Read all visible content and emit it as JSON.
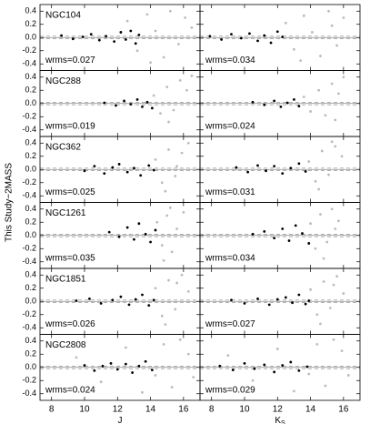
{
  "chart_data": [
    {
      "type": "scatter",
      "title": "NGC104",
      "annotation": "wrms=0.027",
      "ylabel": "This Study−2MASS",
      "xlim": [
        7.3,
        17
      ],
      "ylim": [
        -0.5,
        0.5
      ],
      "xticks": [
        8,
        10,
        12,
        14,
        16
      ],
      "yticks": [
        -0.4,
        -0.2,
        {
          "value": 0,
          "label": "0.0"
        },
        0.2,
        0.4
      ],
      "hlines": [
        0
      ],
      "dashed_lines": [
        -0.02,
        0.02
      ],
      "series": [
        {
          "color": "#bbbbbb",
          "x": [
            12.6,
            13.2,
            13.8,
            14.3,
            14.8,
            15.2,
            15.7,
            16.1,
            16.5,
            14.0
          ],
          "y": [
            0.25,
            -0.2,
            0.35,
            0.1,
            -0.3,
            0.4,
            -0.1,
            0.3,
            0.15,
            -0.38
          ]
        },
        {
          "color": "#000000",
          "x": [
            8.6,
            9.3,
            9.9,
            10.4,
            10.9,
            11.3,
            11.8,
            12.2,
            12.5,
            12.8,
            13.1,
            13.3
          ],
          "y": [
            0.03,
            -0.02,
            0.01,
            0.05,
            -0.04,
            0.02,
            -0.06,
            0.08,
            -0.03,
            0.1,
            -0.09,
            0.04
          ]
        }
      ]
    },
    {
      "type": "scatter",
      "annotation": "wrms=0.034",
      "xlim": [
        7.3,
        17
      ],
      "ylim": [
        -0.5,
        0.5
      ],
      "xticks": [
        8,
        10,
        12,
        14,
        16
      ],
      "yticks": [
        -0.4,
        -0.2,
        {
          "value": 0,
          "label": "0.0"
        },
        0.2,
        0.4
      ],
      "hlines": [
        0
      ],
      "dashed_lines": [
        -0.02,
        0.02
      ],
      "series": [
        {
          "color": "#bbbbbb",
          "x": [
            12.5,
            13,
            13.6,
            14.1,
            14.6,
            15.1,
            15.6,
            16,
            15.3,
            13.4
          ],
          "y": [
            0.22,
            -0.18,
            0.33,
            0.08,
            -0.28,
            0.4,
            -0.12,
            0.3,
            0.18,
            -0.35
          ]
        },
        {
          "color": "#000000",
          "x": [
            7.9,
            8.6,
            9.2,
            9.8,
            10.3,
            10.8,
            11.2,
            11.6,
            12.0,
            12.3
          ],
          "y": [
            0.02,
            -0.03,
            0.05,
            -0.01,
            0.06,
            -0.05,
            0.03,
            -0.08,
            0.09,
            0.01
          ]
        }
      ]
    },
    {
      "type": "scatter",
      "title": "NGC288",
      "annotation": "wrms=0.019",
      "xlim": [
        7.3,
        17
      ],
      "ylim": [
        -0.5,
        0.5
      ],
      "xticks": [
        8,
        10,
        12,
        14,
        16
      ],
      "yticks": [
        -0.4,
        -0.2,
        {
          "value": 0,
          "label": "0.0"
        },
        0.2,
        0.4
      ],
      "hlines": [
        0
      ],
      "dashed_lines": [
        -0.02,
        0.02
      ],
      "series": [
        {
          "color": "#bbbbbb",
          "x": [
            14.2,
            14.6,
            15,
            15.4,
            15.8,
            16.2,
            16.5,
            15.1
          ],
          "y": [
            0.12,
            -0.15,
            0.25,
            -0.1,
            0.35,
            0.2,
            0.42,
            -0.28
          ]
        },
        {
          "color": "#000000",
          "x": [
            11.2,
            11.9,
            12.4,
            12.8,
            13.2,
            13.5,
            13.8,
            14.1
          ],
          "y": [
            0.01,
            -0.03,
            0.04,
            -0.01,
            0.06,
            -0.05,
            0.02,
            -0.07
          ]
        }
      ]
    },
    {
      "type": "scatter",
      "annotation": "wrms=0.024",
      "xlim": [
        7.3,
        17
      ],
      "ylim": [
        -0.5,
        0.5
      ],
      "xticks": [
        8,
        10,
        12,
        14,
        16
      ],
      "yticks": [
        -0.4,
        -0.2,
        {
          "value": 0,
          "label": "0.0"
        },
        0.2,
        0.4
      ],
      "hlines": [
        0
      ],
      "dashed_lines": [
        -0.02,
        0.02
      ],
      "series": [
        {
          "color": "#bbbbbb",
          "x": [
            13.6,
            14,
            14.5,
            14.9,
            15.3,
            15.7,
            16,
            15.5
          ],
          "y": [
            0.1,
            -0.12,
            0.2,
            -0.18,
            0.3,
            0.15,
            0.4,
            -0.25
          ]
        },
        {
          "color": "#000000",
          "x": [
            10.5,
            11.2,
            11.8,
            12.2,
            12.6,
            13,
            13.3
          ],
          "y": [
            0.02,
            -0.02,
            0.04,
            -0.05,
            0.01,
            0.06,
            -0.04
          ]
        }
      ]
    },
    {
      "type": "scatter",
      "title": "NGC362",
      "annotation": "wrms=0.025",
      "xlim": [
        7.3,
        17
      ],
      "ylim": [
        -0.5,
        0.5
      ],
      "xticks": [
        8,
        10,
        12,
        14,
        16
      ],
      "yticks": [
        -0.4,
        -0.2,
        {
          "value": 0,
          "label": "0.0"
        },
        0.2,
        0.4
      ],
      "hlines": [
        0
      ],
      "dashed_lines": [
        -0.02,
        0.02
      ],
      "series": [
        {
          "color": "#bbbbbb",
          "x": [
            14.3,
            14.7,
            15.1,
            15.5,
            15.9,
            16.3,
            14.9,
            15.6
          ],
          "y": [
            0.15,
            -0.2,
            0.3,
            -0.1,
            0.25,
            0.4,
            -0.33,
            0.05
          ]
        },
        {
          "color": "#000000",
          "x": [
            10,
            10.6,
            11.2,
            11.7,
            12.1,
            12.6,
            13,
            13.4,
            13.9,
            14.2
          ],
          "y": [
            -0.02,
            0.05,
            -0.06,
            0.03,
            0.08,
            -0.04,
            0.02,
            -0.09,
            0.06,
            -0.01
          ]
        }
      ]
    },
    {
      "type": "scatter",
      "annotation": "wrms=0.031",
      "xlim": [
        7.3,
        17
      ],
      "ylim": [
        -0.5,
        0.5
      ],
      "xticks": [
        8,
        10,
        12,
        14,
        16
      ],
      "yticks": [
        -0.4,
        -0.2,
        {
          "value": 0,
          "label": "0.0"
        },
        0.2,
        0.4
      ],
      "hlines": [
        0
      ],
      "dashed_lines": [
        -0.02,
        0.02
      ],
      "series": [
        {
          "color": "#bbbbbb",
          "x": [
            13.9,
            14.3,
            14.7,
            15.1,
            15.5,
            15.9,
            14.5,
            15.3
          ],
          "y": [
            0.12,
            -0.18,
            0.28,
            -0.08,
            0.35,
            0.2,
            -0.3,
            0.42
          ]
        },
        {
          "color": "#000000",
          "x": [
            9.5,
            10.2,
            10.8,
            11.3,
            11.8,
            12.3,
            12.8,
            13.3,
            13.7
          ],
          "y": [
            0.03,
            -0.04,
            0.06,
            -0.02,
            0.05,
            -0.06,
            0.02,
            0.09,
            -0.03
          ]
        }
      ]
    },
    {
      "type": "scatter",
      "title": "NGC1261",
      "annotation": "wrms=0.035",
      "xlim": [
        7.3,
        17
      ],
      "ylim": [
        -0.5,
        0.5
      ],
      "xticks": [
        8,
        10,
        12,
        14,
        16
      ],
      "yticks": [
        -0.4,
        -0.2,
        {
          "value": 0,
          "label": "0.0"
        },
        0.2,
        0.4
      ],
      "hlines": [
        0
      ],
      "dashed_lines": [
        -0.02,
        0.02
      ],
      "series": [
        {
          "color": "#bbbbbb",
          "x": [
            14.4,
            14.7,
            15,
            15.3,
            15.6,
            16,
            14.8,
            15.2
          ],
          "y": [
            0.2,
            -0.15,
            0.3,
            -0.25,
            0.1,
            0.35,
            -0.38,
            0.42
          ]
        },
        {
          "color": "#000000",
          "x": [
            11.5,
            12.1,
            12.6,
            13,
            13.3,
            13.7,
            14,
            14.3
          ],
          "y": [
            0.05,
            -0.02,
            0.12,
            -0.06,
            0.18,
            0.02,
            -0.1,
            0.08
          ]
        }
      ]
    },
    {
      "type": "scatter",
      "annotation": "wrms=0.034",
      "xlim": [
        7.3,
        17
      ],
      "ylim": [
        -0.5,
        0.5
      ],
      "xticks": [
        8,
        10,
        12,
        14,
        16
      ],
      "yticks": [
        -0.4,
        -0.2,
        {
          "value": 0,
          "label": "0.0"
        },
        0.2,
        0.4
      ],
      "hlines": [
        0
      ],
      "dashed_lines": [
        -0.02,
        0.02
      ],
      "series": [
        {
          "color": "#bbbbbb",
          "x": [
            14,
            14.3,
            14.6,
            15,
            15.3,
            15.7,
            14.8,
            15.5
          ],
          "y": [
            0.18,
            -0.2,
            0.32,
            -0.1,
            0.4,
            0.22,
            -0.35,
            0.1
          ]
        },
        {
          "color": "#000000",
          "x": [
            10.5,
            11.2,
            11.8,
            12.3,
            12.7,
            13.1,
            13.5,
            13.9
          ],
          "y": [
            0.02,
            0.06,
            -0.04,
            0.1,
            -0.08,
            0.15,
            0.03,
            -0.12
          ]
        }
      ]
    },
    {
      "type": "scatter",
      "title": "NGC1851",
      "annotation": "wrms=0.026",
      "xlim": [
        7.3,
        17
      ],
      "ylim": [
        -0.5,
        0.5
      ],
      "xticks": [
        8,
        10,
        12,
        14,
        16
      ],
      "yticks": [
        -0.4,
        -0.2,
        {
          "value": 0,
          "label": "0.0"
        },
        0.2,
        0.4
      ],
      "hlines": [
        0
      ],
      "dashed_lines": [
        -0.02,
        0.02
      ],
      "series": [
        {
          "color": "#bbbbbb",
          "x": [
            14.3,
            14.7,
            15.1,
            15.5,
            15.9,
            16.3,
            14.9,
            15.6
          ],
          "y": [
            0.2,
            -0.22,
            0.32,
            -0.12,
            0.4,
            0.15,
            -0.35,
            0.28
          ]
        },
        {
          "color": "#000000",
          "x": [
            9.5,
            10.3,
            11,
            11.7,
            12.2,
            12.7,
            13.1,
            13.5,
            13.9,
            14.2
          ],
          "y": [
            0.01,
            0.04,
            -0.03,
            0.02,
            0.07,
            -0.05,
            0.03,
            0.1,
            -0.06,
            0.02
          ]
        }
      ]
    },
    {
      "type": "scatter",
      "annotation": "wrms=0.027",
      "xlim": [
        7.3,
        17
      ],
      "ylim": [
        -0.5,
        0.5
      ],
      "xticks": [
        8,
        10,
        12,
        14,
        16
      ],
      "yticks": [
        -0.4,
        -0.2,
        {
          "value": 0,
          "label": "0.0"
        },
        0.2,
        0.4
      ],
      "hlines": [
        0
      ],
      "dashed_lines": [
        -0.02,
        0.02
      ],
      "series": [
        {
          "color": "#bbbbbb",
          "x": [
            14,
            14.4,
            14.8,
            15.2,
            15.6,
            16,
            14.6,
            15.4
          ],
          "y": [
            0.18,
            -0.2,
            0.3,
            -0.1,
            0.38,
            0.12,
            -0.34,
            0.25
          ]
        },
        {
          "color": "#000000",
          "x": [
            9.2,
            10,
            10.8,
            11.5,
            12,
            12.5,
            12.9,
            13.3,
            13.7,
            13.9
          ],
          "y": [
            0.02,
            -0.03,
            0.04,
            -0.05,
            0.03,
            0.06,
            -0.02,
            0.1,
            -0.04,
            0.01
          ]
        }
      ]
    },
    {
      "type": "scatter",
      "title": "NGC2808",
      "annotation": "wrms=0.024",
      "xlabel": "J",
      "xlim": [
        7.3,
        17
      ],
      "ylim": [
        -0.5,
        0.5
      ],
      "xticks": [
        8,
        10,
        12,
        14,
        16
      ],
      "yticks": [
        -0.4,
        -0.2,
        {
          "value": 0,
          "label": "0.0"
        },
        0.2,
        0.4
      ],
      "hlines": [
        0
      ],
      "dashed_lines": [
        -0.02,
        0.02
      ],
      "series": [
        {
          "color": "#bbbbbb",
          "x": [
            9.5,
            11,
            12.5,
            14.3,
            14.8,
            15.3,
            15.8,
            16.3,
            16.6,
            13.5
          ],
          "y": [
            0.15,
            -0.22,
            0.3,
            -0.12,
            0.35,
            -0.3,
            0.42,
            0.2,
            -0.15,
            -0.38
          ]
        },
        {
          "color": "#000000",
          "x": [
            10,
            10.6,
            11.1,
            11.6,
            12,
            12.5,
            12.9,
            13.3,
            13.7,
            14.1
          ],
          "y": [
            0.03,
            -0.05,
            0.02,
            0.06,
            -0.03,
            0.05,
            -0.08,
            0.02,
            0.09,
            -0.04
          ]
        }
      ]
    },
    {
      "type": "scatter",
      "annotation": "wrms=0.029",
      "xlabel": "K",
      "xlabel_subscript": "S",
      "xlim": [
        7.3,
        17
      ],
      "ylim": [
        -0.5,
        0.5
      ],
      "xticks": [
        8,
        10,
        12,
        14,
        16
      ],
      "yticks": [
        -0.4,
        -0.2,
        {
          "value": 0,
          "label": "0.0"
        },
        0.2,
        0.4
      ],
      "hlines": [
        0
      ],
      "dashed_lines": [
        -0.02,
        0.02
      ],
      "series": [
        {
          "color": "#bbbbbb",
          "x": [
            9,
            10.5,
            12,
            13.9,
            14.4,
            14.9,
            15.4,
            15.9,
            16.3,
            13
          ],
          "y": [
            0.18,
            -0.2,
            0.28,
            -0.1,
            0.35,
            -0.28,
            0.42,
            0.25,
            -0.12,
            -0.36
          ]
        },
        {
          "color": "#000000",
          "x": [
            8.5,
            9.3,
            10,
            10.6,
            11.2,
            11.8,
            12.3,
            12.8,
            13.3,
            13.8
          ],
          "y": [
            0.02,
            -0.04,
            0.06,
            -0.02,
            0.04,
            -0.07,
            0.03,
            0.08,
            -0.05,
            0.01
          ]
        }
      ]
    }
  ]
}
